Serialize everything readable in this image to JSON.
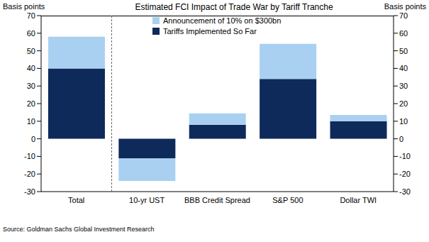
{
  "chart_data": {
    "type": "bar",
    "title": "Estimated FCI Impact of Trade War by Tariff Tranche",
    "stacked": true,
    "categories": [
      "Total",
      "10-yr UST",
      "BBB Credit Spread",
      "S&P 500",
      "Dollar TWI"
    ],
    "series": [
      {
        "name": "Tariffs Implemented So Far",
        "color": "#0e2a5a",
        "values": [
          40,
          -11,
          8,
          34,
          10
        ]
      },
      {
        "name": "Announcement of 10% on $300bn",
        "color": "#a9d0f0",
        "values": [
          18,
          -13,
          6.5,
          20,
          3.5
        ]
      }
    ],
    "y_label": "Basis points",
    "y2_label": "Basis points",
    "ylim": [
      -30,
      70
    ],
    "yticks": [
      -30,
      -20,
      -10,
      0,
      10,
      20,
      30,
      40,
      50,
      60,
      70
    ],
    "y2lim": [
      -30,
      70
    ],
    "y2ticks": [
      -30,
      -20,
      -10,
      0,
      10,
      20,
      30,
      40,
      50,
      60,
      70
    ],
    "legend": "upper center",
    "source": "Source: Goldman Sachs Global Investment Research"
  }
}
